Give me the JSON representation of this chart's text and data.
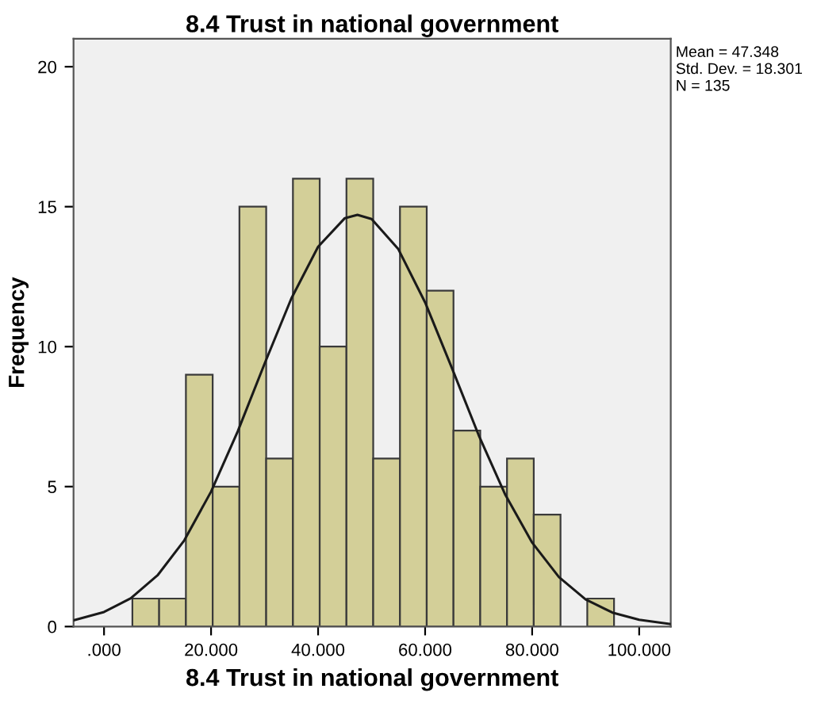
{
  "chart_data": {
    "type": "histogram",
    "title": "8.4 Trust in national government",
    "xlabel": "8.4 Trust in national government",
    "ylabel": "Frequency",
    "bins": [
      5.3,
      10.3,
      15.3,
      20.3,
      25.3,
      30.3,
      35.3,
      40.3,
      45.3,
      50.3,
      55.3,
      60.3,
      65.3,
      70.3,
      75.3,
      80.3,
      85.3,
      90.3,
      95.3
    ],
    "values": [
      1,
      1,
      9,
      5,
      15,
      6,
      16,
      10,
      16,
      6,
      15,
      12,
      7,
      5,
      6,
      4,
      0,
      1
    ],
    "color": "#d3cf98",
    "series": [
      {
        "type": "line",
        "color": "#1a1a1a",
        "x": [
          -5.7,
          0,
          5,
          10,
          15,
          20,
          25,
          30,
          35,
          40,
          45,
          47.35,
          50,
          55,
          60,
          65,
          70,
          75,
          80,
          85,
          90,
          95,
          100,
          105.9
        ],
        "values": [
          0.22,
          0.52,
          1.01,
          1.83,
          3.08,
          4.82,
          6.98,
          9.39,
          11.72,
          13.57,
          14.59,
          14.71,
          14.56,
          13.48,
          11.58,
          9.24,
          6.84,
          4.7,
          3.0,
          1.77,
          0.97,
          0.5,
          0.24,
          0.09
        ]
      }
    ],
    "xlim": [
      -5.7,
      105.9
    ],
    "ylim": [
      0,
      21
    ],
    "xticks": [
      {
        "value": 0,
        "label": ".000"
      },
      {
        "value": 20,
        "label": "20.000"
      },
      {
        "value": 40,
        "label": "40.000"
      },
      {
        "value": 60,
        "label": "60.000"
      },
      {
        "value": 80,
        "label": "80.000"
      },
      {
        "value": 100,
        "label": "100.000"
      }
    ],
    "yticks": [
      0,
      5,
      10,
      15,
      20
    ],
    "annotations": [
      "Mean = 47.348",
      "Std. Dev. = 18.301",
      "N = 135"
    ]
  }
}
